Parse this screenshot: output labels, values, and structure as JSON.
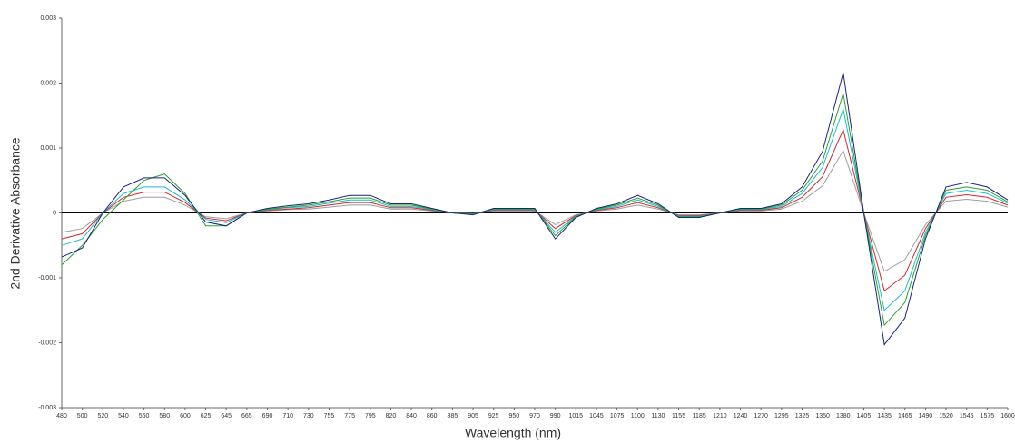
{
  "chart_data": {
    "type": "line",
    "y_label": "2nd Derivative Absorbance",
    "x_label": "Wavelength (nm)",
    "categories": [
      "480",
      "500",
      "520",
      "540",
      "560",
      "580",
      "600",
      "625",
      "645",
      "665",
      "690",
      "710",
      "730",
      "755",
      "775",
      "795",
      "820",
      "840",
      "860",
      "885",
      "905",
      "925",
      "950",
      "970",
      "990",
      "1015",
      "1045",
      "1075",
      "1100",
      "1130",
      "1155",
      "1185",
      "1210",
      "1240",
      "1270",
      "1295",
      "1325",
      "1350",
      "1380",
      "1405",
      "1435",
      "1465",
      "1490",
      "1520",
      "1545",
      "1575",
      "1600"
    ],
    "ylim": [
      -0.003,
      0.003
    ],
    "yticks": [
      -0.003,
      -0.002,
      -0.001,
      0,
      0.001,
      0.002,
      0.003
    ],
    "grid": false,
    "series": [
      {
        "color": "#9e9e9e",
        "values": [
          -0.0003,
          -0.00024,
          0,
          0.00018,
          0.00024,
          0.00024,
          0.00012,
          -6e-05,
          -9e-05,
          0,
          3e-05,
          5e-05,
          6e-05,
          9e-05,
          0.00012,
          0.00012,
          6e-05,
          6e-05,
          3e-05,
          0,
          -1e-05,
          3e-05,
          3e-05,
          3e-05,
          -0.00018,
          -3e-05,
          3e-05,
          6e-05,
          0.00012,
          6e-05,
          -3e-05,
          -3e-05,
          0,
          3e-05,
          3e-05,
          6e-05,
          0.00018,
          0.00042,
          0.00096,
          0,
          -0.0009,
          -0.00072,
          -0.00018,
          0.00018,
          0.00021,
          0.00018,
          9e-05
        ]
      },
      {
        "color": "#d62728",
        "values": [
          -0.0004,
          -0.00032,
          0,
          0.00024,
          0.00032,
          0.00032,
          0.00016,
          -8e-05,
          -0.00012,
          0,
          4e-05,
          6e-05,
          8e-05,
          0.00012,
          0.00016,
          0.00016,
          8e-05,
          8e-05,
          4e-05,
          0,
          -2e-05,
          4e-05,
          4e-05,
          4e-05,
          -0.00024,
          -4e-05,
          4e-05,
          8e-05,
          0.00016,
          8e-05,
          -4e-05,
          -4e-05,
          0,
          4e-05,
          4e-05,
          8e-05,
          0.00024,
          0.00056,
          0.00128,
          0,
          -0.0012,
          -0.00096,
          -0.00024,
          0.00024,
          0.00028,
          0.00024,
          0.00012
        ]
      },
      {
        "color": "#17becf",
        "values": [
          -0.0005,
          -0.0004,
          0,
          0.0003,
          0.0004,
          0.0004,
          0.0002,
          -0.0001,
          -0.00015,
          0,
          5e-05,
          8e-05,
          0.0001,
          0.00015,
          0.0002,
          0.0002,
          0.0001,
          0.0001,
          5e-05,
          0,
          -2e-05,
          5e-05,
          5e-05,
          5e-05,
          -0.0003,
          -5e-05,
          5e-05,
          0.0001,
          0.0002,
          0.0001,
          -5e-05,
          -5e-05,
          0,
          5e-05,
          5e-05,
          0.0001,
          0.0003,
          0.0007,
          0.0016,
          0,
          -0.0015,
          -0.0012,
          -0.0003,
          0.0003,
          0.00035,
          0.0003,
          0.00015
        ]
      },
      {
        "color": "#2ca02c",
        "values": [
          -0.0008,
          -0.0005,
          -0.0001,
          0.0002,
          0.0005,
          0.0006,
          0.0003,
          -0.0002,
          -0.0002,
          0,
          6e-05,
          9e-05,
          0.00012,
          0.00017,
          0.00023,
          0.00023,
          0.00012,
          0.00012,
          6e-05,
          0,
          -2e-05,
          6e-05,
          6e-05,
          6e-05,
          -0.00035,
          -6e-05,
          6e-05,
          0.00012,
          0.00023,
          0.00012,
          -6e-05,
          -6e-05,
          0,
          6e-05,
          6e-05,
          0.00012,
          0.00035,
          0.0008,
          0.00184,
          0,
          -0.00173,
          -0.00138,
          -0.00035,
          0.00035,
          0.0004,
          0.00035,
          0.00017
        ]
      },
      {
        "color": "#1a237e",
        "values": [
          -0.00068,
          -0.00054,
          0,
          0.0004,
          0.00054,
          0.00054,
          0.00027,
          -0.00014,
          -0.0002,
          0,
          7e-05,
          0.00011,
          0.00014,
          0.0002,
          0.00027,
          0.00027,
          0.00014,
          0.00014,
          7e-05,
          0,
          -3e-05,
          7e-05,
          7e-05,
          7e-05,
          -0.0004,
          -7e-05,
          7e-05,
          0.00014,
          0.00027,
          0.00014,
          -7e-05,
          -7e-05,
          0,
          7e-05,
          7e-05,
          0.00014,
          0.0004,
          0.00095,
          0.00216,
          0,
          -0.00203,
          -0.00162,
          -0.0004,
          0.0004,
          0.00047,
          0.0004,
          0.0002
        ]
      }
    ]
  }
}
